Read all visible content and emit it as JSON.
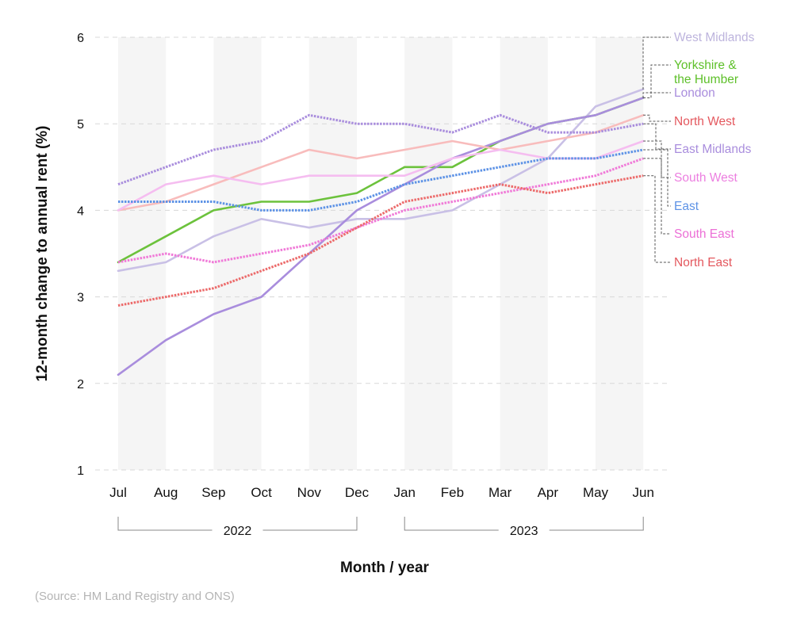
{
  "chart_data": {
    "type": "line",
    "title": "",
    "xlabel": "Month / year",
    "ylabel": "12-month change to annual rent (%)",
    "ylim": [
      1,
      6
    ],
    "yticks": [
      "1",
      "2",
      "3",
      "4",
      "5",
      "6"
    ],
    "categories": [
      "Jul",
      "Aug",
      "Sep",
      "Oct",
      "Nov",
      "Dec",
      "Jan",
      "Feb",
      "Mar",
      "Apr",
      "May",
      "Jun"
    ],
    "year_groups": [
      {
        "label": "2022",
        "from": "Jul",
        "to": "Dec"
      },
      {
        "label": "2023",
        "from": "Jan",
        "to": "Jun"
      }
    ],
    "grid": "horizontal dashed",
    "background": "alternating month bands",
    "legend": "right, direct labels",
    "series": [
      {
        "name": "West Midlands",
        "color": "#c9c0e6",
        "style": "solid",
        "values": [
          3.3,
          3.4,
          3.7,
          3.9,
          3.8,
          3.9,
          3.9,
          4.0,
          4.3,
          4.6,
          5.2,
          5.4
        ]
      },
      {
        "name": "Yorkshire & the Humber",
        "color": "#6cc23c",
        "style": "solid",
        "values": [
          3.4,
          3.7,
          4.0,
          4.1,
          4.1,
          4.2,
          4.5,
          4.5,
          4.8,
          5.0,
          5.1,
          5.3
        ]
      },
      {
        "name": "London",
        "color": "#a98ddd",
        "style": "solid",
        "values": [
          2.1,
          2.5,
          2.8,
          3.0,
          3.5,
          4.0,
          4.3,
          4.6,
          4.8,
          5.0,
          5.1,
          5.3
        ]
      },
      {
        "name": "North West",
        "color": "#f8bcbc",
        "style": "solid",
        "values": [
          4.0,
          4.1,
          4.3,
          4.5,
          4.7,
          4.6,
          4.7,
          4.8,
          4.7,
          4.8,
          4.9,
          5.1
        ]
      },
      {
        "name": "East Midlands",
        "color": "#a98ddd",
        "style": "dotted",
        "values": [
          4.3,
          4.5,
          4.7,
          4.8,
          5.1,
          5.0,
          5.0,
          4.9,
          5.1,
          4.9,
          4.9,
          5.0
        ]
      },
      {
        "name": "South West",
        "color": "#f5bdf0",
        "style": "solid",
        "values": [
          4.0,
          4.3,
          4.4,
          4.3,
          4.4,
          4.4,
          4.4,
          4.6,
          4.7,
          4.6,
          4.6,
          4.8
        ]
      },
      {
        "name": "East",
        "color": "#5e93e6",
        "style": "dotted",
        "values": [
          4.1,
          4.1,
          4.1,
          4.0,
          4.0,
          4.1,
          4.3,
          4.4,
          4.5,
          4.6,
          4.6,
          4.7
        ]
      },
      {
        "name": "South East",
        "color": "#f07ad8",
        "style": "dotted",
        "values": [
          3.4,
          3.5,
          3.4,
          3.5,
          3.6,
          3.8,
          4.0,
          4.1,
          4.2,
          4.3,
          4.4,
          4.6
        ]
      },
      {
        "name": "North East",
        "color": "#ec6b6b",
        "style": "dotted",
        "values": [
          2.9,
          3.0,
          3.1,
          3.3,
          3.5,
          3.8,
          4.1,
          4.2,
          4.3,
          4.2,
          4.3,
          4.4
        ]
      }
    ],
    "series_labels": [
      {
        "series": "West Midlands",
        "lines": [
          "West Midlands"
        ]
      },
      {
        "series": "Yorkshire & the Humber",
        "lines": [
          "Yorkshire &",
          "the Humber"
        ]
      },
      {
        "series": "London",
        "lines": [
          "London"
        ]
      },
      {
        "series": "North West",
        "lines": [
          "North West"
        ]
      },
      {
        "series": "East Midlands",
        "lines": [
          "East Midlands"
        ]
      },
      {
        "series": "South West",
        "lines": [
          "South West"
        ]
      },
      {
        "series": "East",
        "lines": [
          "East"
        ]
      },
      {
        "series": "South East",
        "lines": [
          "South East"
        ]
      },
      {
        "series": "North East",
        "lines": [
          "North East"
        ]
      }
    ]
  },
  "source": "(Source: HM Land Registry and ONS)"
}
